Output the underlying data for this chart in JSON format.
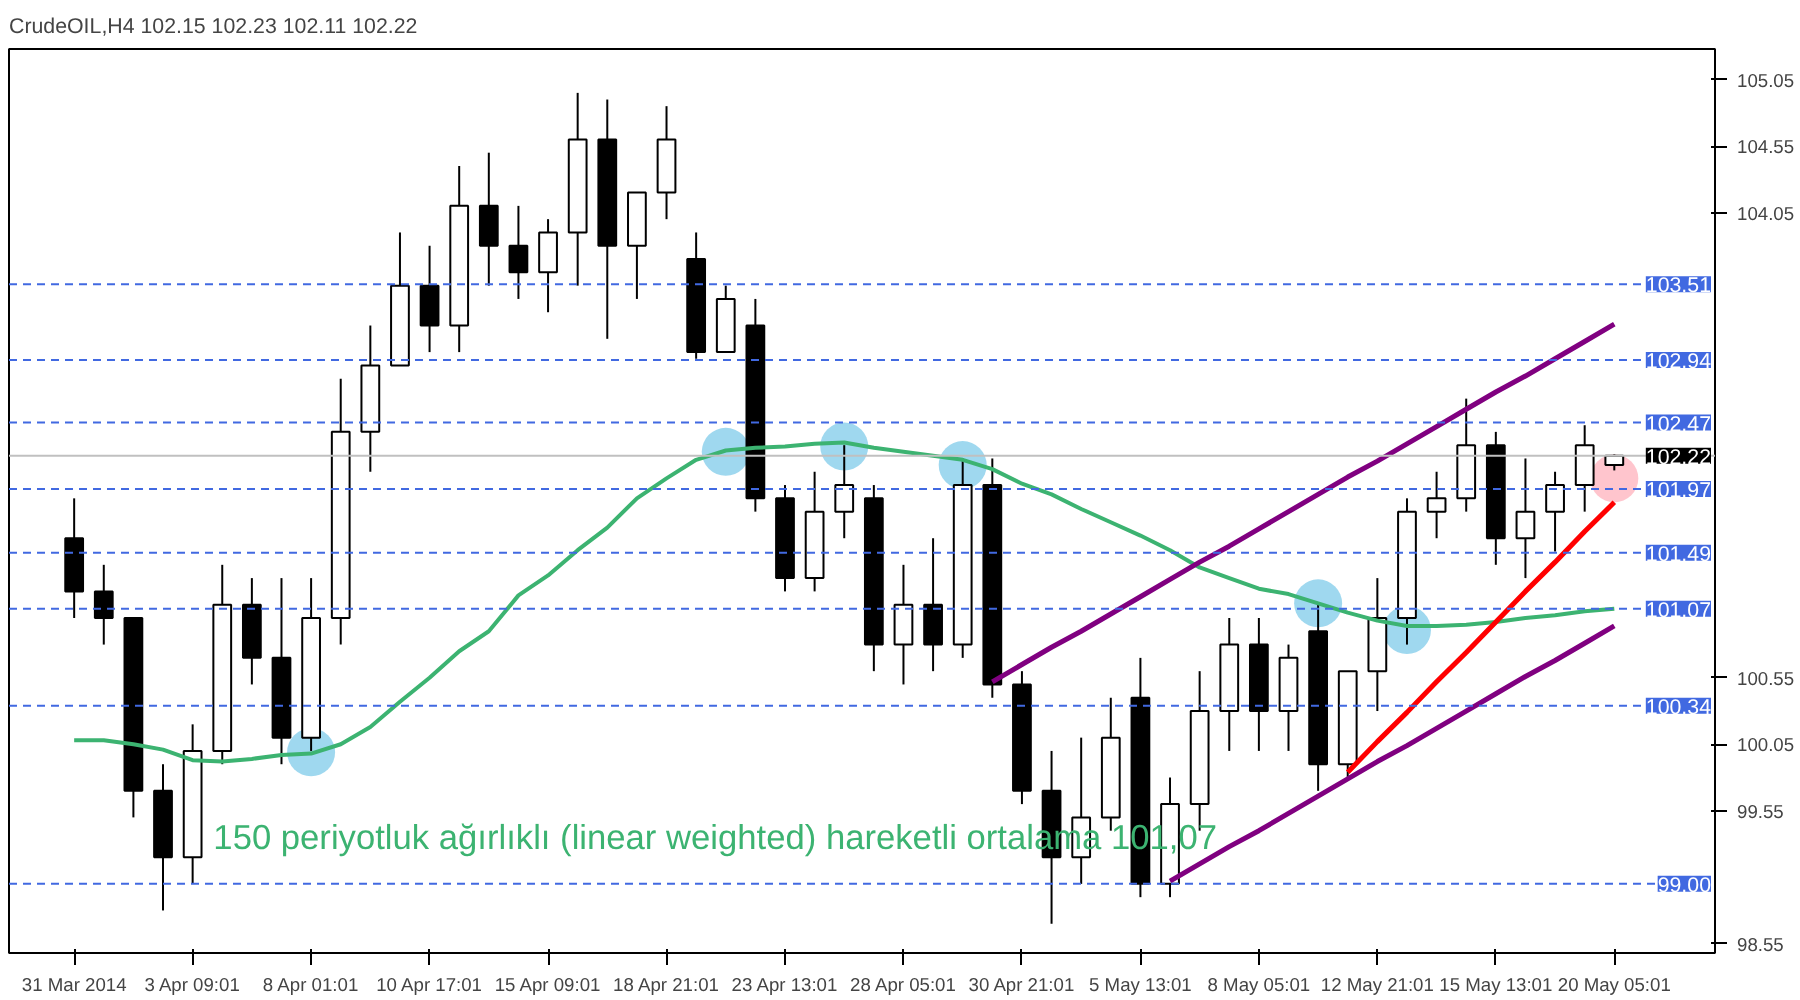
{
  "chart_data": {
    "type": "candlestick",
    "title": "CrudeOIL,H4  102.15 102.23 102.11 102.22",
    "categories": [
      "31 Mar 2014",
      null,
      null,
      null,
      "3 Apr 09:01",
      null,
      null,
      null,
      "8 Apr 01:01",
      null,
      null,
      null,
      "10 Apr 17:01",
      null,
      null,
      null,
      "15 Apr 09:01",
      null,
      null,
      null,
      "18 Apr 21:01",
      null,
      null,
      null,
      "23 Apr 13:01",
      null,
      null,
      null,
      "28 Apr 05:01",
      null,
      null,
      null,
      "30 Apr 21:01",
      null,
      null,
      null,
      "5 May 13:01",
      null,
      null,
      null,
      "8 May 05:01",
      null,
      null,
      null,
      "12 May 21:01",
      null,
      null,
      null,
      "15 May 13:01",
      null,
      null,
      null,
      "20 May 05:01"
    ],
    "ohlc": [
      [
        101.6,
        101.9,
        101.0,
        101.2
      ],
      [
        101.2,
        101.4,
        100.8,
        101.0
      ],
      [
        101.0,
        101.0,
        99.5,
        99.7
      ],
      [
        99.7,
        99.9,
        98.8,
        99.2
      ],
      [
        99.2,
        100.2,
        99.0,
        100.0
      ],
      [
        100.0,
        101.4,
        99.9,
        101.1
      ],
      [
        101.1,
        101.3,
        100.5,
        100.7
      ],
      [
        100.7,
        101.3,
        99.9,
        100.1
      ],
      [
        100.1,
        101.3,
        100.0,
        101.0
      ],
      [
        101.0,
        102.8,
        100.8,
        102.4
      ],
      [
        102.4,
        103.2,
        102.1,
        102.9
      ],
      [
        102.9,
        103.9,
        102.9,
        103.5
      ],
      [
        103.5,
        103.8,
        103.0,
        103.2
      ],
      [
        103.2,
        104.4,
        103.0,
        104.1
      ],
      [
        104.1,
        104.5,
        103.5,
        103.8
      ],
      [
        103.8,
        104.1,
        103.4,
        103.6
      ],
      [
        103.6,
        104.0,
        103.3,
        103.9
      ],
      [
        103.9,
        104.95,
        103.5,
        104.6
      ],
      [
        104.6,
        104.9,
        103.1,
        103.8
      ],
      [
        103.8,
        104.2,
        103.4,
        104.2
      ],
      [
        104.2,
        104.85,
        104.0,
        104.6
      ],
      [
        103.7,
        103.9,
        102.95,
        103.0
      ],
      [
        103.0,
        103.5,
        103.0,
        103.4
      ],
      [
        103.2,
        103.4,
        101.8,
        101.9
      ],
      [
        101.9,
        102.0,
        101.2,
        101.3
      ],
      [
        101.3,
        102.1,
        101.2,
        101.8
      ],
      [
        101.8,
        102.3,
        101.6,
        102.0
      ],
      [
        101.9,
        102.0,
        100.6,
        100.8
      ],
      [
        100.8,
        101.4,
        100.5,
        101.1
      ],
      [
        101.1,
        101.6,
        100.6,
        100.8
      ],
      [
        100.8,
        102.2,
        100.7,
        102.0
      ],
      [
        102.0,
        102.2,
        100.4,
        100.5
      ],
      [
        100.5,
        100.6,
        99.6,
        99.7
      ],
      [
        99.7,
        100.0,
        98.7,
        99.2
      ],
      [
        99.2,
        100.1,
        99.0,
        99.5
      ],
      [
        99.5,
        100.4,
        99.4,
        100.1
      ],
      [
        100.4,
        100.7,
        98.9,
        99.0
      ],
      [
        99.0,
        99.8,
        98.9,
        99.6
      ],
      [
        99.6,
        100.6,
        99.4,
        100.3
      ],
      [
        100.3,
        101.0,
        100.0,
        100.8
      ],
      [
        100.8,
        101.0,
        100.0,
        100.3
      ],
      [
        100.3,
        100.8,
        100.0,
        100.7
      ],
      [
        100.9,
        101.1,
        99.7,
        99.9
      ],
      [
        99.9,
        100.6,
        99.8,
        100.6
      ],
      [
        100.6,
        101.3,
        100.3,
        101.0
      ],
      [
        101.0,
        101.9,
        100.8,
        101.8
      ],
      [
        101.8,
        102.1,
        101.6,
        101.9
      ],
      [
        101.9,
        102.65,
        101.8,
        102.3
      ],
      [
        102.3,
        102.4,
        101.4,
        101.6
      ],
      [
        101.6,
        102.2,
        101.3,
        101.8
      ],
      [
        101.8,
        102.1,
        101.5,
        102.0
      ],
      [
        102.0,
        102.45,
        101.8,
        102.3
      ],
      [
        102.15,
        102.23,
        102.11,
        102.22
      ]
    ],
    "ylim": [
      98.48,
      105.28
    ],
    "yticks": [
      98.55,
      99.55,
      100.05,
      100.55,
      104.05,
      104.55,
      105.05
    ],
    "series": [
      {
        "type": "line",
        "color": "#3cb371",
        "values": [
          100.08,
          100.08,
          100.05,
          100.01,
          99.93,
          99.92,
          99.94,
          99.97,
          99.98,
          100.05,
          100.18,
          100.37,
          100.55,
          100.75,
          100.9,
          101.17,
          101.32,
          101.51,
          101.68,
          101.9,
          102.05,
          102.19,
          102.26,
          102.28,
          102.29,
          102.31,
          102.32,
          102.28,
          102.25,
          102.22,
          102.19,
          102.12,
          102.01,
          101.93,
          101.82,
          101.72,
          101.62,
          101.51,
          101.38,
          101.3,
          101.22,
          101.18,
          101.11,
          101.04,
          100.98,
          100.94,
          100.94,
          100.95,
          100.97,
          101.0,
          101.02,
          101.05,
          101.07
        ]
      },
      {
        "type": "line",
        "color": "#800080",
        "values": [
          null,
          null,
          null,
          null,
          null,
          null,
          null,
          null,
          null,
          null,
          null,
          null,
          null,
          null,
          null,
          null,
          null,
          null,
          null,
          null,
          null,
          null,
          null,
          null,
          null,
          null,
          null,
          null,
          null,
          null,
          null,
          100.52,
          100.65,
          100.78,
          100.9,
          101.03,
          101.16,
          101.29,
          101.42,
          101.54,
          101.67,
          101.8,
          101.93,
          102.06,
          102.18,
          102.31,
          102.44,
          102.57,
          102.7,
          102.82,
          102.95,
          103.08,
          103.21
        ]
      },
      {
        "type": "line",
        "color": "#800080",
        "values": [
          null,
          null,
          null,
          null,
          null,
          null,
          null,
          null,
          null,
          null,
          null,
          null,
          null,
          null,
          null,
          null,
          null,
          null,
          null,
          null,
          null,
          null,
          null,
          null,
          null,
          null,
          null,
          null,
          null,
          null,
          null,
          null,
          null,
          null,
          null,
          null,
          null,
          99.02,
          99.15,
          99.28,
          99.4,
          99.53,
          99.66,
          99.79,
          99.92,
          100.04,
          100.17,
          100.3,
          100.43,
          100.56,
          100.68,
          100.81,
          100.94
        ]
      },
      {
        "type": "line",
        "color": "#ff0000",
        "values": [
          null,
          null,
          null,
          null,
          null,
          null,
          null,
          null,
          null,
          null,
          null,
          null,
          null,
          null,
          null,
          null,
          null,
          null,
          null,
          null,
          null,
          null,
          null,
          null,
          null,
          null,
          null,
          null,
          null,
          null,
          null,
          null,
          null,
          null,
          null,
          null,
          null,
          null,
          null,
          null,
          null,
          null,
          null,
          99.84,
          100.07,
          100.29,
          100.52,
          100.74,
          100.97,
          101.2,
          101.42,
          101.65,
          101.87
        ]
      },
      {
        "type": "scatter",
        "color": "#87ceeb",
        "marker": "circle",
        "values": [
          null,
          null,
          null,
          null,
          null,
          null,
          null,
          null,
          99.99,
          null,
          null,
          null,
          null,
          null,
          null,
          null,
          null,
          null,
          null,
          null,
          null,
          null,
          102.25,
          null,
          null,
          null,
          102.29,
          null,
          null,
          null,
          102.15,
          null,
          null,
          null,
          null,
          null,
          null,
          null,
          null,
          null,
          null,
          null,
          101.11,
          null,
          null,
          100.91,
          null,
          null,
          null,
          null,
          null,
          null,
          null
        ]
      },
      {
        "type": "scatter",
        "color": "#ffb6c1",
        "marker": "circle",
        "values": [
          null,
          null,
          null,
          null,
          null,
          null,
          null,
          null,
          null,
          null,
          null,
          null,
          null,
          null,
          null,
          null,
          null,
          null,
          null,
          null,
          null,
          null,
          null,
          null,
          null,
          null,
          null,
          null,
          null,
          null,
          null,
          null,
          null,
          null,
          null,
          null,
          null,
          null,
          null,
          null,
          null,
          null,
          null,
          null,
          null,
          null,
          null,
          null,
          null,
          null,
          null,
          null,
          102.05
        ]
      }
    ],
    "ref_lines": [
      {
        "axis": "y",
        "value": 103.51,
        "label": "103.51",
        "color": "#4169e1",
        "line_style": "dashed"
      },
      {
        "axis": "y",
        "value": 102.94,
        "label": "102.94",
        "color": "#4169e1",
        "line_style": "dashed"
      },
      {
        "axis": "y",
        "value": 102.47,
        "label": "102.47",
        "color": "#4169e1",
        "line_style": "dashed"
      },
      {
        "axis": "y",
        "value": 102.22,
        "label": "102.22",
        "color": "#c0c0c0",
        "line_style": "solid"
      },
      {
        "axis": "y",
        "value": 101.97,
        "label": "101.97",
        "color": "#4169e1",
        "line_style": "dashed"
      },
      {
        "axis": "y",
        "value": 101.49,
        "label": "101.49",
        "color": "#4169e1",
        "line_style": "dashed"
      },
      {
        "axis": "y",
        "value": 101.07,
        "label": "101.07",
        "color": "#4169e1",
        "line_style": "dashed"
      },
      {
        "axis": "y",
        "value": 100.34,
        "label": "100.34",
        "color": "#4169e1",
        "line_style": "dashed"
      },
      {
        "axis": "y",
        "value": 99.0,
        "label": "99.00",
        "color": "#4169e1",
        "line_style": "dashed"
      }
    ],
    "annotations": [
      "150 periyotluk ağırlıklı (linear weighted) hareketli ortalama 101,07"
    ]
  }
}
